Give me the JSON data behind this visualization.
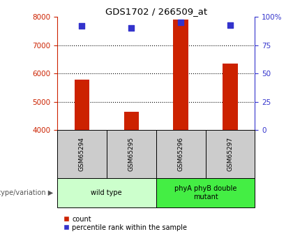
{
  "title": "GDS1702 / 266509_at",
  "samples": [
    "GSM65294",
    "GSM65295",
    "GSM65296",
    "GSM65297"
  ],
  "counts": [
    5780,
    4650,
    7900,
    6350
  ],
  "percentile_ranks": [
    92,
    90,
    95,
    93
  ],
  "ylim_left": [
    4000,
    8000
  ],
  "ylim_right": [
    0,
    100
  ],
  "yticks_left": [
    4000,
    5000,
    6000,
    7000,
    8000
  ],
  "yticks_right": [
    0,
    25,
    50,
    75,
    100
  ],
  "bar_color": "#cc2200",
  "dot_color": "#3333cc",
  "groups": [
    {
      "label": "wild type",
      "samples": [
        0,
        1
      ],
      "color": "#ccffcc"
    },
    {
      "label": "phyA phyB double\nmutant",
      "samples": [
        2,
        3
      ],
      "color": "#44ee44"
    }
  ],
  "xlabel_group": "genotype/variation",
  "legend_count_label": "count",
  "legend_pct_label": "percentile rank within the sample",
  "sample_box_color": "#cccccc",
  "bar_bottom": 4000,
  "bar_width": 0.3
}
